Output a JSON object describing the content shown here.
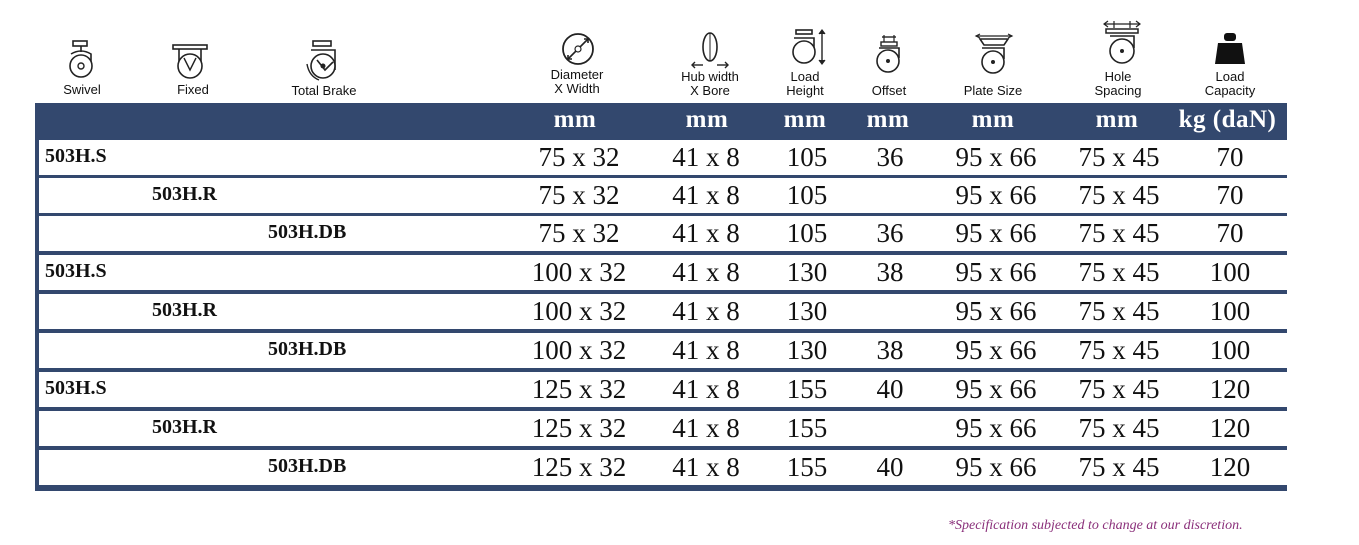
{
  "headers": {
    "swivel": "Swivel",
    "fixed": "Fixed",
    "total_brake": "Total Brake",
    "diameter_l1": "Diameter",
    "diameter_l2": "X Width",
    "hub_l1": "Hub width",
    "hub_l2": "X Bore",
    "load_height_l1": "Load",
    "load_height_l2": "Height",
    "offset": "Offset",
    "plate_size": "Plate Size",
    "hole_l1": "Hole",
    "hole_l2": "Spacing",
    "capacity_l1": "Load",
    "capacity_l2": "Capacity"
  },
  "units": [
    "mm",
    "mm",
    "mm",
    "mm",
    "mm",
    "mm",
    "kg (daN)"
  ],
  "rows": [
    {
      "model": "503H.S",
      "type": "swivel",
      "diameter": "75 x 32",
      "hub": "41 x 8",
      "height": "105",
      "offset": "36",
      "plate": "95 x 66",
      "hole": "75 x 45",
      "capacity": "70"
    },
    {
      "model": "503H.R",
      "type": "fixed",
      "diameter": "75 x 32",
      "hub": "41 x 8",
      "height": "105",
      "offset": "",
      "plate": "95 x 66",
      "hole": "75 x 45",
      "capacity": "70"
    },
    {
      "model": "503H.DB",
      "type": "brake",
      "diameter": "75 x 32",
      "hub": "41 x 8",
      "height": "105",
      "offset": "36",
      "plate": "95 x 66",
      "hole": "75 x 45",
      "capacity": "70"
    },
    {
      "model": "503H.S",
      "type": "swivel",
      "diameter": "100 x 32",
      "hub": "41 x 8",
      "height": "130",
      "offset": "38",
      "plate": "95 x 66",
      "hole": "75 x 45",
      "capacity": "100"
    },
    {
      "model": "503H.R",
      "type": "fixed",
      "diameter": "100 x 32",
      "hub": "41 x 8",
      "height": "130",
      "offset": "",
      "plate": "95 x 66",
      "hole": "75 x 45",
      "capacity": "100"
    },
    {
      "model": "503H.DB",
      "type": "brake",
      "diameter": "100 x 32",
      "hub": "41 x 8",
      "height": "130",
      "offset": "38",
      "plate": "95 x 66",
      "hole": "75 x 45",
      "capacity": "100"
    },
    {
      "model": "503H.S",
      "type": "swivel",
      "diameter": "125 x 32",
      "hub": "41 x 8",
      "height": "155",
      "offset": "40",
      "plate": "95 x 66",
      "hole": "75 x 45",
      "capacity": "120"
    },
    {
      "model": "503H.R",
      "type": "fixed",
      "diameter": "125 x 32",
      "hub": "41 x 8",
      "height": "155",
      "offset": "",
      "plate": "95 x 66",
      "hole": "75 x 45",
      "capacity": "120"
    },
    {
      "model": "503H.DB",
      "type": "brake",
      "diameter": "125 x 32",
      "hub": "41 x 8",
      "height": "155",
      "offset": "40",
      "plate": "95 x 66",
      "hole": "75 x 45",
      "capacity": "120"
    }
  ],
  "footnote": "*Specification subjected to change at our discretion.",
  "colors": {
    "frame": "#33486e",
    "unit_text": "#ffffff",
    "footnote": "#8a2f7a"
  },
  "icons": [
    "swivel-caster-icon",
    "fixed-caster-icon",
    "total-brake-caster-icon",
    "diameter-icon",
    "hub-width-icon",
    "load-height-icon",
    "offset-icon",
    "plate-size-icon",
    "hole-spacing-icon",
    "load-capacity-weight-icon"
  ]
}
